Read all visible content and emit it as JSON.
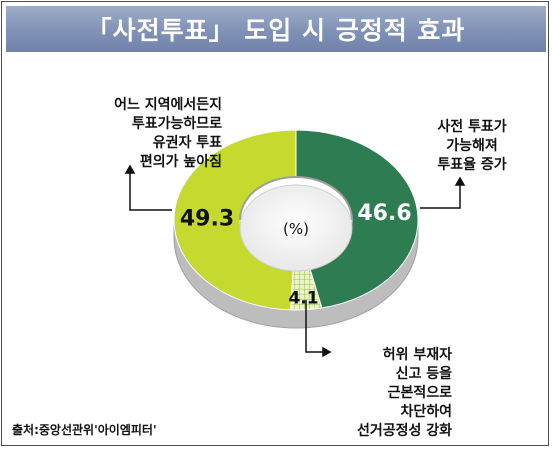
{
  "title": "「사전투표」 도입 시 긍정적 효과",
  "source": "출처:중앙선관위'아이엠피터'",
  "chart_data": {
    "type": "pie",
    "center_label": "(%)",
    "slices": [
      {
        "label": "사전 투표가\n가능해져\n투표율 증가",
        "value": 46.6,
        "display": "46.6",
        "color": "#2e7d52"
      },
      {
        "label": "허위 부재자\n신고 등을\n근본적으로\n차단하여\n선거공정성 강화",
        "value": 4.1,
        "display": "4.1",
        "color": "#dff0a8"
      },
      {
        "label": "어느 지역에서든지\n투표가능하므로\n유권자 투표\n편의가 높아짐",
        "value": 49.3,
        "display": "49.3",
        "color": "#c5d92e"
      }
    ]
  }
}
